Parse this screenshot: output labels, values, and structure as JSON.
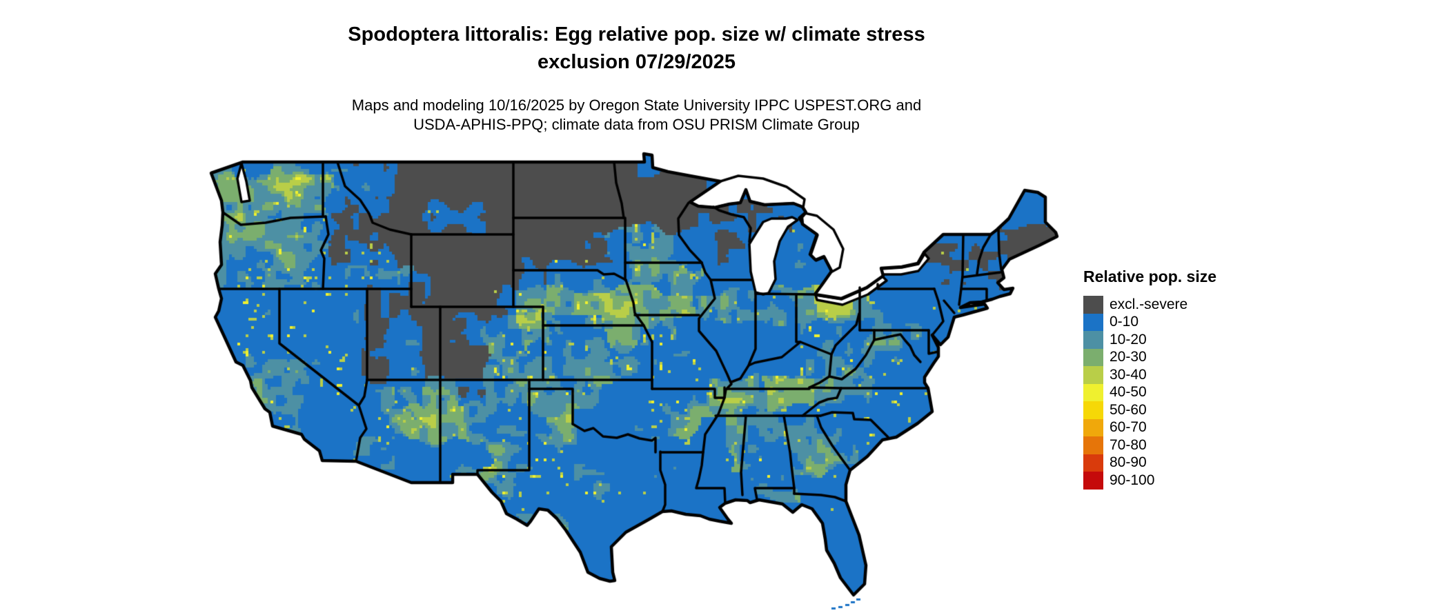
{
  "title": {
    "line1": "Spodoptera littoralis: Egg relative pop. size w/ climate stress",
    "line2": "exclusion 07/29/2025"
  },
  "subtitle": {
    "line1": "Maps and modeling 10/16/2025 by Oregon State University IPPC USPEST.ORG and",
    "line2": "USDA-APHIS-PPQ; climate data from OSU PRISM Climate Group"
  },
  "legend": {
    "title": "Relative pop. size",
    "items": [
      {
        "label": "excl.-severe",
        "color": "#4D4D4D"
      },
      {
        "label": "0-10",
        "color": "#1B73C6"
      },
      {
        "label": "10-20",
        "color": "#4D90A4"
      },
      {
        "label": "20-30",
        "color": "#7BAE6E"
      },
      {
        "label": "30-40",
        "color": "#B9CE48"
      },
      {
        "label": "40-50",
        "color": "#EFF02F"
      },
      {
        "label": "50-60",
        "color": "#F6D807"
      },
      {
        "label": "60-70",
        "color": "#F0A80B"
      },
      {
        "label": "70-80",
        "color": "#E67509"
      },
      {
        "label": "80-90",
        "color": "#D93B0C"
      },
      {
        "label": "90-100",
        "color": "#C50A0B"
      }
    ]
  },
  "map": {
    "region": "contiguous United States",
    "zone_codes": {
      "G": "excluded-gray dominant",
      "g": "gray-blue mix",
      "B": "blue 0-10 dominant",
      "T": "teal 10-20 mix",
      "m": "moderate green-yellow mottle over blue",
      "M": "heavy green-yellow mottle band",
      ".": "water / outside"
    },
    "zone_grid": [
      "mgmgggGGGGGGGG..............",
      "mmmmggGGGGGGGGGG............",
      "mmmmggGggGGGGGGGggg.........",
      "mmmmggGGGGGGgTTBgggg...gggGG",
      "mmmmmmgGGGgTTmmmBB.BB.BBggBB",
      ".mmmmggGGgmMMMMMmmmmMmBBBBB.",
      ".mmmmggGgmMmmMmBBBBmmmmBB...",
      ".mmmmggGGmmmmmmmBBBmmmmB....",
      ".mmBmmgmgmmmmBmmmmMMmmmB....",
      "..mBmmmmmmBmBBmmBmmmmmBB....",
      "....BmBBBmmmBBBBBmmmmBB.....",
      "......BBmmmmmBBBBBmBBB......",
      "........BBmmBBBBB.BBBB......",
      ".........BBBBB..mmB.........",
      "..........BB........BB......",
      "....................BB......"
    ]
  }
}
